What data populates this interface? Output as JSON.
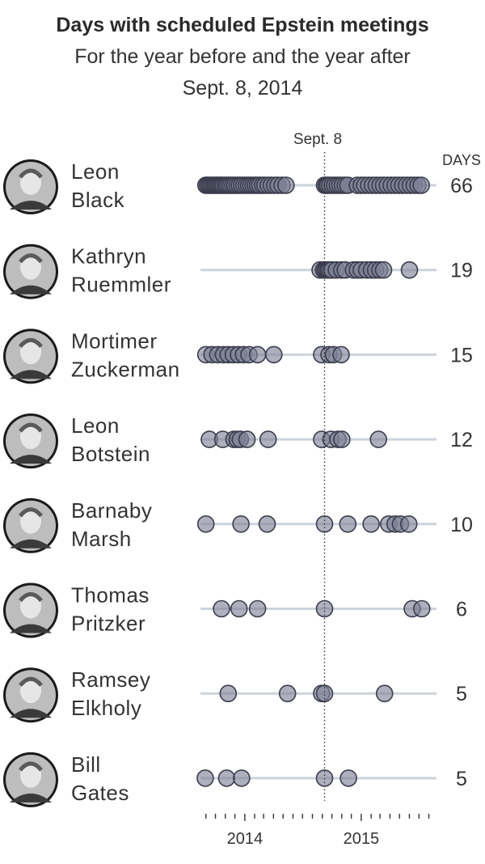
{
  "chart_data": {
    "type": "scatter",
    "title": "Days with scheduled Epstein meetings",
    "subtitle_line1": "For the year before and the year after",
    "subtitle_line2": "Sept. 8, 2014",
    "reference_line": {
      "date": "2014-09-08",
      "label": "Sept. 8"
    },
    "count_header": "DAYS",
    "x_range": [
      "2013-08-15",
      "2015-08-25"
    ],
    "x_tick_labels": [
      {
        "date": "2014-01-01",
        "label": "2014"
      },
      {
        "date": "2015-01-01",
        "label": "2015"
      }
    ],
    "series": [
      {
        "name_line1": "Leon",
        "name_line2": "Black",
        "count": "66",
        "dates": [
          "2013-09-01",
          "2013-09-06",
          "2013-09-11",
          "2013-09-16",
          "2013-09-21",
          "2013-09-26",
          "2013-10-01",
          "2013-10-06",
          "2013-10-11",
          "2013-10-16",
          "2013-10-21",
          "2013-10-26",
          "2013-11-01",
          "2013-11-06",
          "2013-11-12",
          "2013-11-18",
          "2013-11-25",
          "2013-12-01",
          "2013-12-08",
          "2013-12-15",
          "2013-12-22",
          "2013-12-29",
          "2014-01-06",
          "2014-01-13",
          "2014-01-20",
          "2014-01-27",
          "2014-02-03",
          "2014-02-10",
          "2014-02-17",
          "2014-02-26",
          "2014-03-05",
          "2014-03-15",
          "2014-03-25",
          "2014-04-05",
          "2014-04-15",
          "2014-04-28",
          "2014-05-10",
          "2014-09-08",
          "2014-09-13",
          "2014-09-18",
          "2014-09-24",
          "2014-10-02",
          "2014-10-10",
          "2014-10-18",
          "2014-10-26",
          "2014-11-03",
          "2014-11-12",
          "2014-11-20",
          "2014-12-20",
          "2015-01-01",
          "2015-01-12",
          "2015-01-24",
          "2015-02-05",
          "2015-02-17",
          "2015-03-01",
          "2015-03-12",
          "2015-03-24",
          "2015-04-05",
          "2015-04-17",
          "2015-04-29",
          "2015-05-11",
          "2015-05-23",
          "2015-06-04",
          "2015-06-16",
          "2015-06-28",
          "2015-07-08"
        ]
      },
      {
        "name_line1": "Kathryn",
        "name_line2": "Ruemmler",
        "count": "19",
        "dates": [
          "2014-08-25",
          "2014-09-05",
          "2014-09-10",
          "2014-09-15",
          "2014-09-20",
          "2014-09-25",
          "2014-10-01",
          "2014-10-15",
          "2014-11-01",
          "2014-11-12",
          "2014-12-08",
          "2014-12-20",
          "2015-01-01",
          "2015-01-18",
          "2015-02-02",
          "2015-02-15",
          "2015-02-28",
          "2015-03-12",
          "2015-06-01"
        ]
      },
      {
        "name_line1": "Mortimer",
        "name_line2": "Zuckerman",
        "count": "15",
        "dates": [
          "2013-09-01",
          "2013-09-20",
          "2013-10-08",
          "2013-10-26",
          "2013-11-10",
          "2013-11-26",
          "2013-12-12",
          "2013-12-28",
          "2014-01-14",
          "2014-02-10",
          "2014-04-02",
          "2014-08-30",
          "2014-09-22",
          "2014-10-06",
          "2014-10-30"
        ]
      },
      {
        "name_line1": "Leon",
        "name_line2": "Botstein",
        "count": "12",
        "dates": [
          "2013-09-12",
          "2013-10-24",
          "2013-11-28",
          "2013-12-08",
          "2013-12-18",
          "2014-01-08",
          "2014-03-15",
          "2014-08-30",
          "2014-09-28",
          "2014-10-20",
          "2014-11-01",
          "2015-02-24"
        ]
      },
      {
        "name_line1": "Barnaby",
        "name_line2": "Marsh",
        "count": "10",
        "dates": [
          "2013-09-01",
          "2013-12-20",
          "2014-03-12",
          "2014-09-08",
          "2014-11-20",
          "2015-02-01",
          "2015-03-28",
          "2015-04-17",
          "2015-05-04",
          "2015-05-30"
        ]
      },
      {
        "name_line1": "Thomas",
        "name_line2": "Pritzker",
        "count": "6",
        "dates": [
          "2013-10-20",
          "2013-12-14",
          "2014-02-10",
          "2014-09-08",
          "2015-06-10",
          "2015-07-10"
        ]
      },
      {
        "name_line1": "Ramsey",
        "name_line2": "Elkholy",
        "count": "5",
        "dates": [
          "2013-11-10",
          "2014-05-15",
          "2014-08-30",
          "2014-09-08",
          "2015-03-15"
        ]
      },
      {
        "name_line1": "Bill",
        "name_line2": "Gates",
        "count": "5",
        "dates": [
          "2013-08-30",
          "2013-11-05",
          "2013-12-22",
          "2014-09-08",
          "2014-11-22"
        ]
      }
    ]
  },
  "colors": {
    "dot_fill": "#7d8095",
    "dot_stroke": "#3b3d4d",
    "track": "#cdd3dc",
    "reference": "#333333",
    "avatar_bg": "#1a1a1a"
  }
}
